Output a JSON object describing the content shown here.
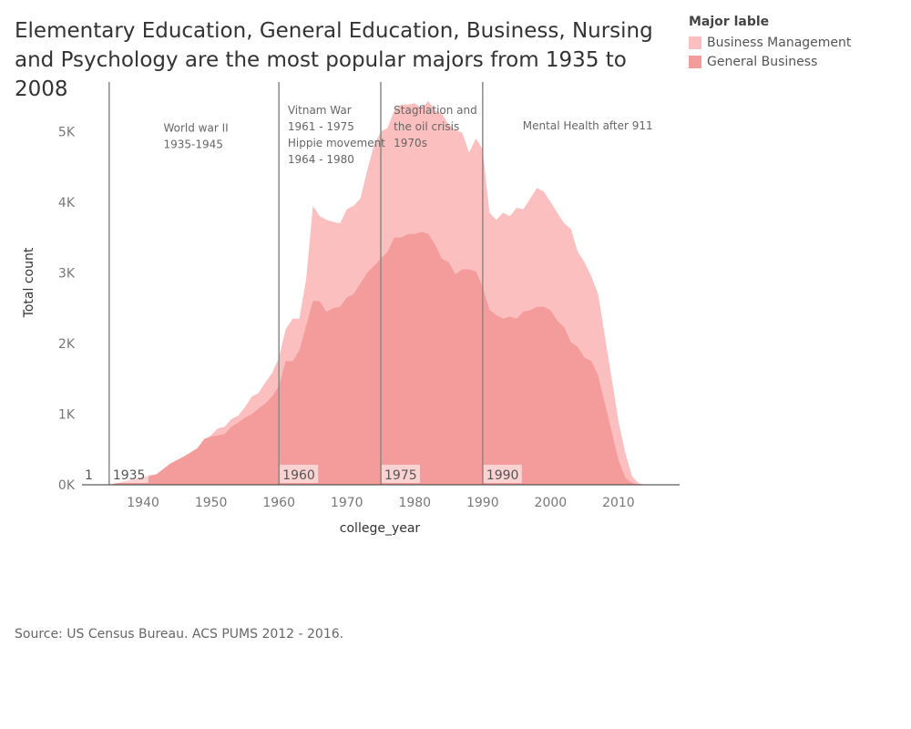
{
  "chart_data": {
    "type": "area",
    "title": "Elementary Education, General Education, Business, Nursing and Psychology are the most popular majors from 1935 to 2008",
    "xlabel": "college_year",
    "ylabel": "Total count",
    "xlim": [
      1931,
      2019
    ],
    "ylim": [
      0,
      5700
    ],
    "x_ticks": [
      1940,
      1950,
      1960,
      1970,
      1980,
      1990,
      2000,
      2010
    ],
    "x_tick_labels": [
      "1940",
      "1950",
      "1960",
      "1970",
      "1980",
      "1990",
      "2000",
      "2010"
    ],
    "y_ticks": [
      0,
      1000,
      2000,
      3000,
      4000,
      5000
    ],
    "y_tick_labels": [
      "0K",
      "1K",
      "2K",
      "3K",
      "4K",
      "5K"
    ],
    "legend_title": "Major lable",
    "legend_position": "top-right",
    "grid": false,
    "series": [
      {
        "name": "Business Management",
        "color": "#fbbfbf",
        "x": [
          1935,
          1940,
          1942,
          1944,
          1946,
          1948,
          1949,
          1950,
          1951,
          1952,
          1953,
          1954,
          1955,
          1956,
          1957,
          1958,
          1959,
          1960,
          1961,
          1962,
          1963,
          1964,
          1965,
          1966,
          1967,
          1968,
          1969,
          1970,
          1971,
          1972,
          1973,
          1974,
          1975,
          1976,
          1977,
          1978,
          1979,
          1980,
          1981,
          1982,
          1983,
          1984,
          1985,
          1986,
          1987,
          1988,
          1989,
          1990,
          1991,
          1992,
          1993,
          1994,
          1995,
          1996,
          1997,
          1998,
          1999,
          2000,
          2001,
          2002,
          2003,
          2004,
          2005,
          2006,
          2007,
          2008,
          2009,
          2010,
          2011,
          2012,
          2013,
          2014,
          2015
        ],
        "values": [
          0,
          120,
          150,
          300,
          400,
          500,
          640,
          700,
          800,
          820,
          930,
          980,
          1100,
          1250,
          1300,
          1450,
          1580,
          1800,
          2200,
          2350,
          2350,
          2900,
          3950,
          3800,
          3750,
          3720,
          3700,
          3900,
          3950,
          4050,
          4450,
          4800,
          5000,
          5050,
          5300,
          5380,
          5380,
          5400,
          5330,
          5430,
          5300,
          5250,
          5100,
          5020,
          4980,
          4700,
          4900,
          4750,
          3850,
          3750,
          3850,
          3800,
          3920,
          3900,
          4050,
          4200,
          4150,
          4000,
          3850,
          3700,
          3620,
          3300,
          3150,
          2950,
          2700,
          2100,
          1500,
          900,
          450,
          120,
          20,
          0,
          0
        ]
      },
      {
        "name": "General Business",
        "color": "#f49c9c",
        "x": [
          1935,
          1940,
          1942,
          1944,
          1946,
          1948,
          1949,
          1950,
          1951,
          1952,
          1953,
          1954,
          1955,
          1956,
          1957,
          1958,
          1959,
          1960,
          1961,
          1962,
          1963,
          1964,
          1965,
          1966,
          1967,
          1968,
          1969,
          1970,
          1971,
          1972,
          1973,
          1974,
          1975,
          1976,
          1977,
          1978,
          1979,
          1980,
          1981,
          1982,
          1983,
          1984,
          1985,
          1986,
          1987,
          1988,
          1989,
          1990,
          1991,
          1992,
          1993,
          1994,
          1995,
          1996,
          1997,
          1998,
          1999,
          2000,
          2001,
          2002,
          2003,
          2004,
          2005,
          2006,
          2007,
          2008,
          2009,
          2010,
          2011,
          2012,
          2013,
          2014,
          2015
        ],
        "values": [
          0,
          100,
          150,
          300,
          400,
          520,
          650,
          680,
          700,
          720,
          820,
          880,
          950,
          1000,
          1080,
          1150,
          1250,
          1400,
          1750,
          1750,
          1900,
          2250,
          2600,
          2600,
          2450,
          2500,
          2520,
          2650,
          2700,
          2850,
          3000,
          3100,
          3200,
          3300,
          3500,
          3500,
          3550,
          3550,
          3580,
          3550,
          3400,
          3200,
          3150,
          2980,
          3050,
          3050,
          3020,
          2800,
          2480,
          2400,
          2350,
          2380,
          2350,
          2450,
          2470,
          2520,
          2520,
          2470,
          2320,
          2230,
          2020,
          1950,
          1800,
          1750,
          1550,
          1150,
          750,
          350,
          100,
          30,
          0,
          0,
          0
        ]
      }
    ],
    "reference_lines": [
      {
        "x": 1935,
        "label": "1935"
      },
      {
        "x": 1960,
        "label": "1960"
      },
      {
        "x": 1975,
        "label": "1975"
      },
      {
        "x": 1990,
        "label": "1990"
      }
    ],
    "corner_label": "1",
    "annotations": [
      {
        "lines": [
          "World war II",
          "1935-1945"
        ],
        "x": 1943,
        "y": 5000
      },
      {
        "lines": [
          "Vitnam War",
          "1961 - 1975",
          "Hippie movement",
          "1964 - 1980"
        ],
        "x": 1961.3,
        "y": 5250
      },
      {
        "lines": [
          "Stagflation and",
          "the  oil crisis",
          "1970s"
        ],
        "x": 1976.9,
        "y": 5250
      },
      {
        "lines": [
          "Mental Health after 911"
        ],
        "x": 1995.9,
        "y": 5030
      }
    ]
  },
  "source": "Source: US Census Bureau. ACS PUMS 2012 - 2016."
}
